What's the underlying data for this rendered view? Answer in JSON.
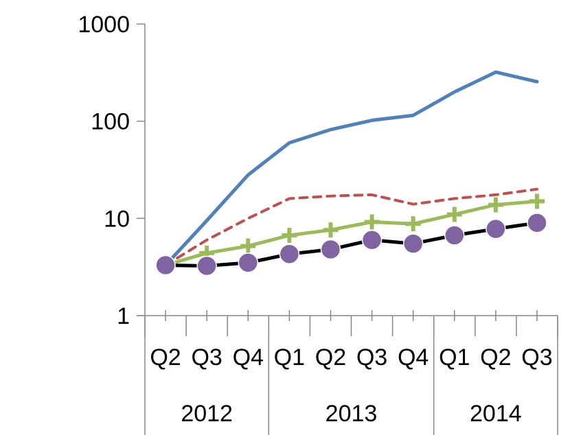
{
  "chart_data": {
    "type": "line",
    "title": "",
    "xlabel": "",
    "ylabel": "",
    "y_scale": "log",
    "ylim": [
      1,
      1000
    ],
    "y_ticks": [
      "1",
      "10",
      "100",
      "1000"
    ],
    "grid": false,
    "legend": "none",
    "categories": [
      "Q2",
      "Q3",
      "Q4",
      "Q1",
      "Q2",
      "Q3",
      "Q4",
      "Q1",
      "Q2",
      "Q3"
    ],
    "groups": [
      {
        "label": "2012",
        "count": 3
      },
      {
        "label": "2013",
        "count": 4
      },
      {
        "label": "2014",
        "count": 3
      }
    ],
    "series": [
      {
        "color": "#4F81BD",
        "style": "solid",
        "marker": "none",
        "values": [
          3.3,
          9.5,
          28,
          60,
          82,
          102,
          115,
          200,
          320,
          255
        ]
      },
      {
        "color": "#C0504D",
        "style": "dashed",
        "marker": "none",
        "values": [
          3.3,
          6.0,
          10,
          16,
          17,
          17.5,
          14,
          16,
          17.5,
          20
        ]
      },
      {
        "color": "#9BBB59",
        "style": "solid",
        "marker": "plus",
        "values": [
          3.3,
          4.4,
          5.2,
          6.7,
          7.6,
          9.2,
          8.8,
          11,
          13.8,
          15
        ]
      },
      {
        "color": "#000000",
        "style": "solid",
        "marker": "circle",
        "marker_color": "#8064A2",
        "values": [
          3.3,
          3.25,
          3.5,
          4.3,
          4.8,
          6.0,
          5.5,
          6.7,
          7.8,
          9.0
        ]
      }
    ]
  }
}
